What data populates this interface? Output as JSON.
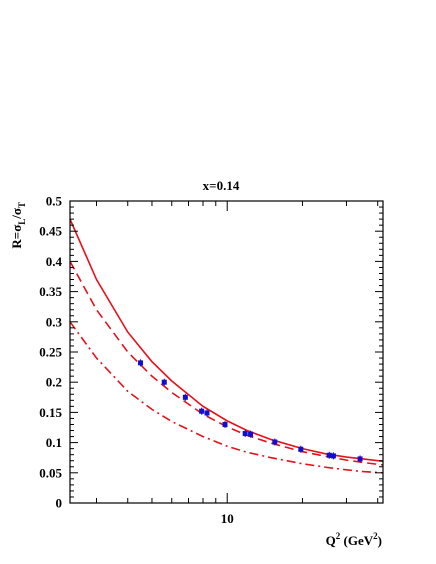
{
  "chart_data": {
    "type": "scatter",
    "title": "x=0.14",
    "xlabel": {
      "main": "Q",
      "sup1": "2",
      "unit_open": " (GeV",
      "sup2": "2",
      "unit_close": ")"
    },
    "ylabel": {
      "main": "R=σ",
      "sub1": "L",
      "mid": "/σ",
      "sub2": "T"
    },
    "x_scale": "log",
    "xlim": [
      2.35,
      42
    ],
    "ylim": [
      0,
      0.5
    ],
    "x_ticks": [
      {
        "value": 10,
        "label": "10"
      }
    ],
    "y_ticks": [
      {
        "value": 0,
        "label": "0"
      },
      {
        "value": 0.05,
        "label": "0.05"
      },
      {
        "value": 0.1,
        "label": "0.1"
      },
      {
        "value": 0.15,
        "label": "0.15"
      },
      {
        "value": 0.2,
        "label": "0.2"
      },
      {
        "value": 0.25,
        "label": "0.25"
      },
      {
        "value": 0.3,
        "label": "0.3"
      },
      {
        "value": 0.35,
        "label": "0.35"
      },
      {
        "value": 0.4,
        "label": "0.4"
      },
      {
        "value": 0.45,
        "label": "0.45"
      },
      {
        "value": 0.5,
        "label": "0.5"
      }
    ],
    "points": {
      "color": "#1010cc",
      "x": [
        4.5,
        5.6,
        6.8,
        7.9,
        8.3,
        9.8,
        11.8,
        12.4,
        15.5,
        19.7,
        25.6,
        26.6,
        34.0
      ],
      "y": [
        0.232,
        0.2,
        0.175,
        0.152,
        0.149,
        0.13,
        0.115,
        0.114,
        0.101,
        0.089,
        0.079,
        0.078,
        0.073
      ]
    },
    "curves": [
      {
        "style": "solid",
        "color": "#e8101a",
        "x": [
          2.35,
          3,
          4,
          5,
          6,
          8,
          10,
          12,
          15,
          20,
          25,
          30,
          35,
          42
        ],
        "y": [
          0.47,
          0.37,
          0.283,
          0.234,
          0.202,
          0.16,
          0.136,
          0.12,
          0.105,
          0.09,
          0.081,
          0.076,
          0.073,
          0.069
        ]
      },
      {
        "style": "dashed",
        "color": "#e8101a",
        "x": [
          2.35,
          3,
          4,
          5,
          6,
          8,
          10,
          12,
          15,
          20,
          25,
          30,
          35,
          42
        ],
        "y": [
          0.4,
          0.32,
          0.25,
          0.21,
          0.183,
          0.147,
          0.126,
          0.112,
          0.099,
          0.085,
          0.077,
          0.071,
          0.067,
          0.063
        ]
      },
      {
        "style": "dash-dot",
        "color": "#e8101a",
        "x": [
          2.35,
          3,
          4,
          5,
          6,
          8,
          10,
          12,
          15,
          20,
          25,
          30,
          35,
          42
        ],
        "y": [
          0.3,
          0.24,
          0.185,
          0.155,
          0.135,
          0.11,
          0.094,
          0.084,
          0.075,
          0.065,
          0.059,
          0.055,
          0.052,
          0.05
        ]
      }
    ]
  }
}
